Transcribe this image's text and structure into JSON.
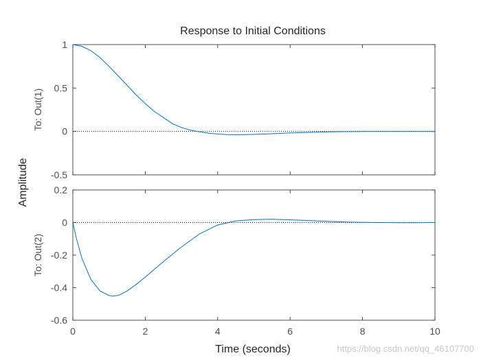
{
  "chart_data": {
    "type": "line",
    "title": "Response to Initial Conditions",
    "xlabel": "Time (seconds)",
    "ylabel": "Amplitude",
    "xlim": [
      0,
      10
    ],
    "xticks": [
      "0",
      "2",
      "4",
      "6",
      "8",
      "10"
    ],
    "line_color": "#0072bd",
    "watermark": "https://blog.csdn.net/qq_46107700",
    "panels": [
      {
        "ylabel": "To: Out(1)",
        "ylim": [
          -0.5,
          1
        ],
        "yticks": [
          "1",
          "0.5",
          "0",
          "-0.5"
        ],
        "x": [
          0,
          0.25,
          0.5,
          0.75,
          1,
          1.25,
          1.5,
          1.75,
          2,
          2.25,
          2.5,
          2.75,
          3,
          3.25,
          3.5,
          3.75,
          4,
          4.25,
          4.5,
          5,
          5.5,
          6,
          6.5,
          7,
          7.5,
          8,
          8.5,
          9,
          9.5,
          10
        ],
        "y": [
          1,
          0.98,
          0.93,
          0.85,
          0.75,
          0.64,
          0.53,
          0.42,
          0.32,
          0.23,
          0.16,
          0.09,
          0.045,
          0.015,
          -0.005,
          -0.02,
          -0.03,
          -0.036,
          -0.038,
          -0.034,
          -0.026,
          -0.018,
          -0.011,
          -0.006,
          -0.003,
          -0.001,
          0,
          0,
          0,
          0
        ]
      },
      {
        "ylabel": "To: Out(2)",
        "ylim": [
          -0.6,
          0.2
        ],
        "yticks": [
          "0.2",
          "0",
          "-0.2",
          "-0.4",
          "-0.6"
        ],
        "x": [
          0,
          0.1,
          0.25,
          0.5,
          0.75,
          1,
          1.1,
          1.25,
          1.5,
          1.75,
          2,
          2.5,
          3,
          3.5,
          4,
          4.5,
          5,
          5.5,
          6,
          6.5,
          7,
          7.5,
          8,
          8.5,
          9,
          9.5,
          10
        ],
        "y": [
          0,
          -0.1,
          -0.22,
          -0.35,
          -0.42,
          -0.448,
          -0.452,
          -0.448,
          -0.42,
          -0.38,
          -0.335,
          -0.24,
          -0.15,
          -0.07,
          -0.015,
          0.01,
          0.018,
          0.02,
          0.017,
          0.012,
          0.007,
          0.003,
          0.001,
          0,
          -0.001,
          -0.001,
          0
        ]
      }
    ]
  }
}
